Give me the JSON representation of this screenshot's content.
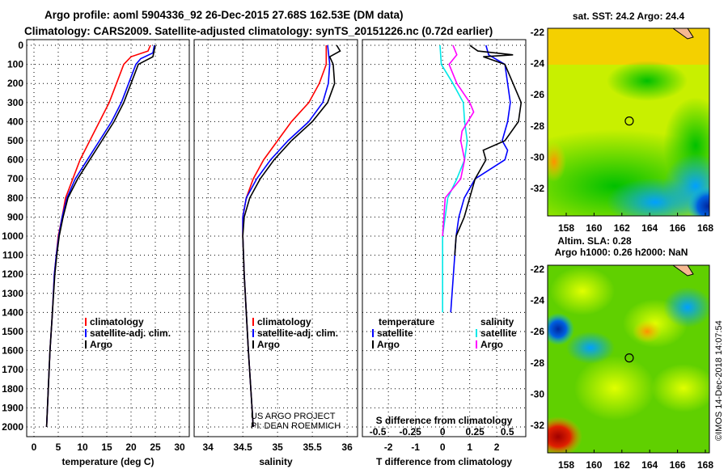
{
  "title_line1": "Argo profile: aoml 5904336_92 26-Dec-2015 27.68S 162.53E (DM data)",
  "title_line2": "Climatology: CARS2009. Satellite-adjusted climatology: synTS_20151226.nc (0.72d earlier)",
  "credit": "US ARGO PROJECT",
  "pi": "PI: DEAN ROEMMICH",
  "copyright": "©IMOS 14-Dec-2018 14:07:54",
  "colors": {
    "climatology": "#ff0000",
    "satellite": "#0000ff",
    "argo": "#000000",
    "sat_s": "#00e8e8",
    "argo_s": "#ff00ff"
  },
  "chart_data": [
    {
      "type": "line",
      "name": "temperature",
      "xlabel": "temperature (deg C)",
      "ylabel": "depth",
      "xlim": [
        -1.5,
        32
      ],
      "ylim": [
        2000,
        0
      ],
      "xticks": [
        0,
        5,
        10,
        15,
        20,
        25,
        30
      ],
      "yticks": [
        0,
        100,
        200,
        300,
        400,
        500,
        600,
        700,
        800,
        900,
        1000,
        1100,
        1200,
        1300,
        1400,
        1500,
        1600,
        1700,
        1800,
        1900,
        2000
      ],
      "legend": [
        "climatology",
        "satellite-adj. clim.",
        "Argo"
      ],
      "series": [
        {
          "name": "climatology",
          "color": "#ff0000",
          "depth": [
            0,
            30,
            60,
            100,
            200,
            300,
            400,
            500,
            600,
            700,
            800,
            900,
            1000,
            1100,
            1200,
            1400,
            1600,
            2000
          ],
          "values": [
            24,
            23.5,
            20,
            18.5,
            17,
            15.5,
            13.5,
            11.5,
            9.5,
            8,
            6.5,
            5.8,
            5,
            4.6,
            4.2,
            3.8,
            3.3,
            2.6
          ]
        },
        {
          "name": "satellite-adj. clim.",
          "color": "#0000ff",
          "depth": [
            0,
            40,
            70,
            100,
            200,
            300,
            400,
            500,
            600,
            700,
            800,
            900,
            1000,
            1100,
            1200,
            1400,
            1600,
            2000
          ],
          "values": [
            24.8,
            24.5,
            22,
            21,
            19.5,
            18,
            16,
            13.5,
            11,
            8.5,
            6.8,
            5.8,
            5.1,
            4.6,
            4.2,
            3.8,
            3.3,
            2.6
          ]
        },
        {
          "name": "Argo",
          "color": "#000000",
          "depth": [
            0,
            60,
            100,
            200,
            300,
            400,
            500,
            600,
            700,
            800,
            900,
            1000,
            1100,
            1200,
            1400,
            1600,
            2000
          ],
          "values": [
            25,
            24.5,
            21.5,
            20,
            18.5,
            16.5,
            14,
            11.5,
            9,
            7,
            6,
            5.2,
            4.7,
            4.3,
            3.8,
            3.3,
            2.6
          ]
        }
      ]
    },
    {
      "type": "line",
      "name": "salinity",
      "xlabel": "salinity",
      "ylabel": "depth",
      "xlim": [
        33.8,
        36.15
      ],
      "ylim": [
        2000,
        0
      ],
      "xticks": [
        34,
        34.5,
        35,
        35.5,
        36
      ],
      "legend": [
        "climatology",
        "satellite-adj. clim.",
        "Argo"
      ],
      "series": [
        {
          "name": "climatology",
          "color": "#ff0000",
          "depth": [
            0,
            100,
            200,
            300,
            400,
            500,
            600,
            700,
            800,
            900,
            1000,
            1200,
            1400,
            1600,
            2000
          ],
          "values": [
            35.7,
            35.7,
            35.6,
            35.45,
            35.2,
            35,
            34.8,
            34.65,
            34.55,
            34.5,
            34.5,
            34.52,
            34.55,
            34.58,
            34.65
          ]
        },
        {
          "name": "satellite-adj. clim.",
          "color": "#0000ff",
          "depth": [
            0,
            100,
            200,
            300,
            400,
            500,
            600,
            700,
            800,
            900,
            1000,
            1200,
            1400,
            1600,
            2000
          ],
          "values": [
            35.72,
            35.75,
            35.73,
            35.65,
            35.45,
            35.15,
            34.9,
            34.7,
            34.55,
            34.5,
            34.5,
            34.52,
            34.55,
            34.58,
            34.65
          ]
        },
        {
          "name": "Argo",
          "color": "#000000",
          "depth": [
            0,
            30,
            60,
            100,
            200,
            300,
            400,
            500,
            600,
            700,
            800,
            900,
            1000,
            1200,
            1400,
            1600,
            2000
          ],
          "values": [
            35.85,
            35.9,
            35.75,
            35.8,
            35.82,
            35.72,
            35.5,
            35.2,
            34.95,
            34.75,
            34.6,
            34.52,
            34.5,
            34.52,
            34.55,
            34.58,
            34.65
          ]
        }
      ]
    },
    {
      "type": "line",
      "name": "difference",
      "xlabel": "T difference from climatology",
      "top_xlabel": "S difference from climatology",
      "xlim": [
        -2.96,
        3.07
      ],
      "ylim": [
        2000,
        0
      ],
      "xticks": [
        -2,
        -1,
        0,
        1,
        2
      ],
      "xticks_s": [
        -0.5,
        -0.25,
        0,
        0.25,
        0.5
      ],
      "xticks_s_labels": [
        "-0.5",
        "-0.25",
        "0",
        "0.25",
        "0.5"
      ],
      "s_scale_to_t": 4.78,
      "legend_t_title": "temperature",
      "legend_s_title": "salinity",
      "legend": [
        "satellite",
        "Argo"
      ],
      "series": [
        {
          "name": "T satellite",
          "color": "#0000ff",
          "var": "T",
          "depth": [
            0,
            50,
            100,
            200,
            300,
            400,
            500,
            550,
            600,
            700,
            800,
            900,
            1000,
            1200,
            1400
          ],
          "values": [
            1.6,
            1.7,
            2.3,
            2.4,
            2.5,
            2.4,
            2.2,
            2.4,
            2.3,
            1.2,
            0.8,
            0.6,
            0.5,
            0.4,
            0.3
          ]
        },
        {
          "name": "T Argo",
          "color": "#000000",
          "var": "T",
          "depth": [
            0,
            30,
            50,
            60,
            100,
            200,
            300,
            400,
            500,
            550,
            600,
            700,
            800,
            900,
            1000,
            1100
          ],
          "values": [
            1.0,
            1.3,
            2.6,
            1.5,
            2.3,
            2.6,
            2.9,
            2.8,
            2.3,
            1.5,
            1.6,
            1.2,
            1.0,
            0.8,
            0.5,
            0.45
          ]
        },
        {
          "name": "S satellite",
          "color": "#00e8e8",
          "var": "S",
          "depth": [
            0,
            100,
            200,
            300,
            400,
            500,
            600,
            700,
            800,
            1000,
            1400
          ],
          "values": [
            -0.02,
            -0.01,
            0.08,
            0.16,
            0.17,
            0.19,
            0.17,
            0.11,
            0.04,
            0.0,
            0.0
          ]
        },
        {
          "name": "S Argo",
          "color": "#ff00ff",
          "var": "S",
          "depth": [
            0,
            50,
            100,
            200,
            300,
            350,
            450,
            500,
            600,
            700,
            800,
            900,
            1000
          ],
          "values": [
            0.08,
            0.11,
            0.05,
            0.11,
            0.21,
            0.24,
            0.15,
            0.14,
            0.17,
            0.14,
            0.02,
            0.01,
            0.0
          ]
        }
      ]
    }
  ],
  "maps": [
    {
      "name": "sst-map",
      "title": "sat. SST: 24.2 Argo: 24.4",
      "lon_ticks": [
        158,
        160,
        162,
        164,
        166,
        168
      ],
      "lat_ticks": [
        -22,
        -24,
        -26,
        -28,
        -30,
        -32
      ],
      "float_lon": 162.53,
      "float_lat": -27.68
    },
    {
      "name": "sla-map",
      "title1": "Altim. SLA: 0.28",
      "title2": "Argo h1000: 0.26 h2000: NaN",
      "lon_ticks": [
        158,
        160,
        162,
        164,
        166,
        168
      ],
      "lat_ticks": [
        -22,
        -24,
        -26,
        -28,
        -30,
        -32
      ],
      "float_lon": 162.53,
      "float_lat": -27.68
    }
  ]
}
